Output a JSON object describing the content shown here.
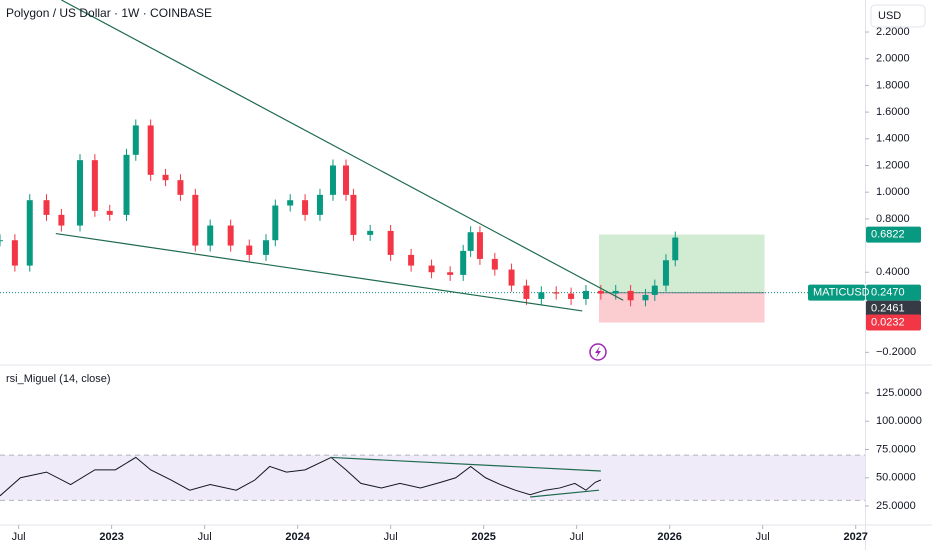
{
  "chart_data": [
    {
      "type": "candle",
      "title": "Polygon / US Dollar · 1W · COINBASE",
      "currency": "USD",
      "up_color": "#089981",
      "down_color": "#f23645",
      "x": [
        2022.4,
        2022.48,
        2022.56,
        2022.65,
        2022.73,
        2022.83,
        2022.91,
        2022.99,
        2023.08,
        2023.13,
        2023.21,
        2023.29,
        2023.37,
        2023.45,
        2023.53,
        2023.64,
        2023.74,
        2023.83,
        2023.88,
        2023.96,
        2024.04,
        2024.12,
        2024.19,
        2024.26,
        2024.3,
        2024.39,
        2024.5,
        2024.61,
        2024.72,
        2024.82,
        2024.89,
        2024.93,
        2024.98,
        2025.06,
        2025.15,
        2025.23,
        2025.31,
        2025.39,
        2025.47,
        2025.55,
        2025.63,
        2025.71,
        2025.79,
        2025.87,
        2025.92,
        2025.98,
        2026.03
      ],
      "values": [
        0.64,
        0.45,
        0.94,
        0.83,
        0.75,
        1.24,
        0.86,
        0.83,
        1.28,
        1.5,
        1.13,
        1.09,
        0.98,
        0.6,
        0.75,
        0.6,
        0.53,
        0.64,
        0.9,
        0.94,
        0.83,
        0.98,
        1.2,
        0.98,
        0.68,
        0.71,
        0.53,
        0.45,
        0.4,
        0.38,
        0.56,
        0.7,
        0.5,
        0.42,
        0.3,
        0.2,
        0.25,
        0.24,
        0.2,
        0.26,
        0.24,
        0.26,
        0.19,
        0.23,
        0.3,
        0.49,
        0.66
      ],
      "ylim": [
        -0.28,
        2.44
      ],
      "yticks": [
        {
          "value": 2.2,
          "label": "2.2000"
        },
        {
          "value": 2.0,
          "label": "2.0000"
        },
        {
          "value": 1.8,
          "label": "1.8000"
        },
        {
          "value": 1.6,
          "label": "1.6000"
        },
        {
          "value": 1.4,
          "label": "1.4000"
        },
        {
          "value": 1.2,
          "label": "1.2000"
        },
        {
          "value": 1.0,
          "label": "1.0000"
        },
        {
          "value": 0.8,
          "label": "0.8000"
        },
        {
          "value": 0.4,
          "label": "0.4000"
        },
        {
          "value": -0.2,
          "label": "−0.2000"
        }
      ],
      "trendlines": [
        {
          "x": [
            2022.73,
            2025.75
          ],
          "y": [
            2.44,
            0.19
          ],
          "color": "#1e6b4e"
        },
        {
          "x": [
            2022.7,
            2025.53
          ],
          "y": [
            0.69,
            0.11
          ],
          "color": "#1e6b4e"
        }
      ],
      "position": {
        "x": [
          2025.62,
          2026.51
        ],
        "target": 0.6822,
        "entry": 0.2461,
        "stop": 0.0232
      },
      "last": {
        "name": "MATICUSD",
        "value": 0.247,
        "value_label": "0.2470",
        "color": "#089981"
      }
    },
    {
      "type": "line",
      "title": "rsi_Miguel (14, close)",
      "color": "#131722",
      "x": [
        2022.4,
        2022.51,
        2022.65,
        2022.78,
        2022.91,
        2023.02,
        2023.13,
        2023.21,
        2023.32,
        2023.42,
        2023.53,
        2023.67,
        2023.77,
        2023.85,
        2023.94,
        2024.04,
        2024.18,
        2024.26,
        2024.34,
        2024.45,
        2024.55,
        2024.66,
        2024.77,
        2024.85,
        2024.93,
        2025.01,
        2025.09,
        2025.17,
        2025.25,
        2025.33,
        2025.41,
        2025.49,
        2025.55,
        2025.6,
        2025.63
      ],
      "values": [
        34,
        50,
        55,
        44,
        57,
        57,
        68,
        57,
        48,
        39,
        44,
        39,
        48,
        60,
        55,
        57,
        68,
        57,
        45,
        41,
        45,
        41,
        46,
        50,
        60,
        50,
        44,
        39,
        35,
        39,
        41,
        45,
        39,
        46,
        48
      ],
      "band": [
        30,
        70
      ],
      "ylim": [
        8.2,
        148.9
      ],
      "yticks": [
        {
          "value": 125,
          "label": "125.0000"
        },
        {
          "value": 100,
          "label": "100.0000"
        },
        {
          "value": 75,
          "label": "75.0000"
        },
        {
          "value": 50,
          "label": "50.0000"
        },
        {
          "value": 25,
          "label": "25.0000"
        }
      ],
      "trendlines": [
        {
          "x": [
            2024.18,
            2025.63
          ],
          "y": [
            68,
            56
          ],
          "color": "#1e6b4e"
        },
        {
          "x": [
            2025.25,
            2025.62
          ],
          "y": [
            33,
            39
          ],
          "color": "#1e6b4e"
        }
      ],
      "xlim": [
        2022.4,
        2027.05
      ],
      "xticks": [
        {
          "value": 2022.5,
          "label": "Jul"
        },
        2023,
        {
          "value": 2023.5,
          "label": "Jul"
        },
        2024,
        {
          "value": 2024.5,
          "label": "Jul"
        },
        2025,
        {
          "value": 2025.5,
          "label": "Jul"
        },
        2026,
        {
          "value": 2026.5,
          "label": "Jul"
        },
        2027
      ]
    }
  ]
}
